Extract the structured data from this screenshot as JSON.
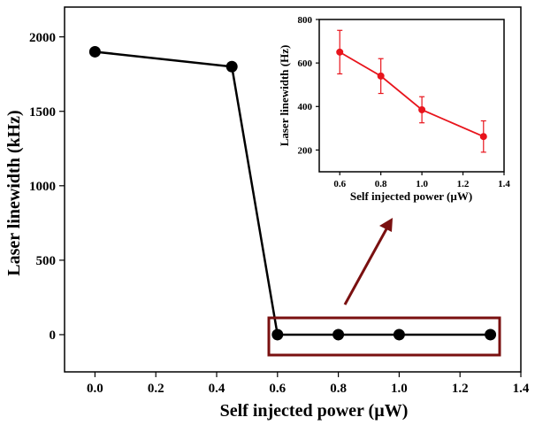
{
  "colors": {
    "main_series": "#000000",
    "inset_series": "#e8141c",
    "highlight": "#7a1010",
    "background": "#ffffff"
  },
  "chart_data": [
    {
      "type": "line",
      "xlabel": "Self injected power (µW)",
      "ylabel": "Laser linewidth (kHz)",
      "xlim": [
        -0.1,
        1.4
      ],
      "ylim": [
        -250,
        2200
      ],
      "xticks": [
        0.0,
        0.2,
        0.4,
        0.6,
        0.8,
        1.0,
        1.2,
        1.4
      ],
      "xtick_labels": [
        "0.0",
        "0.2",
        "0.4",
        "0.6",
        "0.8",
        "1.0",
        "1.2",
        "1.4"
      ],
      "yticks": [
        0,
        500,
        1000,
        1500,
        2000
      ],
      "ytick_labels": [
        "0",
        "500",
        "1000",
        "1500",
        "2000"
      ],
      "series": [
        {
          "x": [
            0.0,
            0.45,
            0.6,
            0.8,
            1.0,
            1.3
          ],
          "y": [
            1900,
            1800,
            0,
            0,
            0,
            0
          ]
        }
      ],
      "annotations": [
        "highlight box around near-zero points with arrow to inset"
      ]
    },
    {
      "type": "line",
      "xlabel": "Self injected power (µW)",
      "ylabel": "Laser linewidth (Hz)",
      "xlim": [
        0.5,
        1.4
      ],
      "ylim": [
        100,
        800
      ],
      "xticks": [
        0.6,
        0.8,
        1.0,
        1.2,
        1.4
      ],
      "xtick_labels": [
        "0.6",
        "0.8",
        "1.0",
        "1.2",
        "1.4"
      ],
      "yticks": [
        200,
        400,
        600,
        800
      ],
      "ytick_labels": [
        "200",
        "400",
        "600",
        "800"
      ],
      "series": [
        {
          "x": [
            0.6,
            0.8,
            1.0,
            1.3
          ],
          "y": [
            650,
            540,
            385,
            262
          ],
          "error": [
            100,
            80,
            60,
            72
          ]
        }
      ]
    }
  ]
}
